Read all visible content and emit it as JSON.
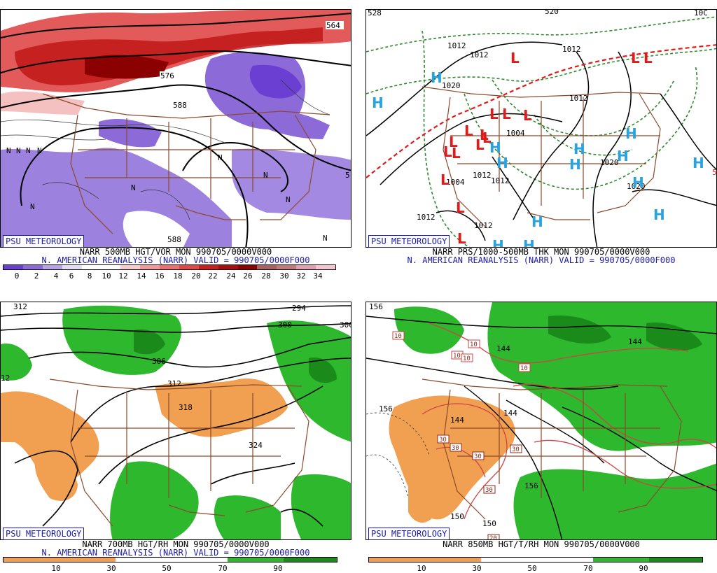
{
  "panels": {
    "p1": {
      "caption1": "NARR 500MB HGT/VOR MON 990705/0000V000",
      "caption2": "N. AMERICAN REANALYSIS (NARR) VALID = 990705/0000F000",
      "badge": "PSU METEOROLOGY",
      "colorbar_ticks": [
        "0",
        "2",
        "4",
        "6",
        "8",
        "10",
        "12",
        "14",
        "16",
        "18",
        "20",
        "22",
        "24",
        "26",
        "28",
        "30",
        "32",
        "34"
      ],
      "colors": {
        "neg_fill": "#8c6bd9",
        "pos_fill": "#e04848"
      },
      "contour_labels": [
        "564",
        "576",
        "588",
        "588",
        "5"
      ],
      "n_marks": [
        "N",
        "N",
        "N",
        "N",
        "N",
        "N",
        "N",
        "N",
        "N",
        "N"
      ]
    },
    "p2": {
      "caption1": "NARR PRS/1000-500MB THK MON 990705/0000V000",
      "caption2": "N. AMERICAN REANALYSIS (NARR) VALID = 990705/0000F000",
      "badge": "PSU METEOROLOGY",
      "edge_labels": [
        "528",
        "520",
        "10C",
        "5"
      ],
      "pressure_labels": [
        "1012",
        "1012",
        "1012",
        "1020",
        "1012",
        "1004",
        "1012",
        "1012",
        "1004",
        "1020",
        "1020",
        "1012",
        "1012"
      ],
      "highs": [
        "H",
        "H",
        "H",
        "H",
        "H",
        "H",
        "H",
        "H",
        "H",
        "H",
        "H",
        "H",
        "H",
        "H"
      ],
      "lows": [
        "L",
        "L",
        "L",
        "L",
        "L",
        "L",
        "L",
        "L",
        "L",
        "L",
        "L",
        "L",
        "L",
        "L",
        "L",
        "L"
      ]
    },
    "p3": {
      "caption1": "NARR 700MB HGT/RH MON 990705/0000V000",
      "caption2": "N. AMERICAN REANALYSIS (NARR) VALID = 990705/0000F000",
      "badge": "PSU METEOROLOGY",
      "colorbar_ticks": [
        "10",
        "30",
        "50",
        "70",
        "90"
      ],
      "contour_labels": [
        "312",
        "294",
        "300",
        "306",
        "306",
        "312",
        "318",
        "324",
        "12"
      ],
      "colors": {
        "dry": "#f0a050",
        "moist": "#2db82d"
      }
    },
    "p4": {
      "caption1": "NARR 850MB HGT/T/RH MON 990705/0000V000",
      "badge": "PSU METEOROLOGY",
      "colorbar_ticks": [
        "10",
        "30",
        "50",
        "70",
        "90"
      ],
      "contour_labels": [
        "156",
        "156",
        "144",
        "144",
        "144",
        "144",
        "150",
        "150",
        "156"
      ],
      "temp_labels": [
        "10",
        "10",
        "10",
        "10",
        "10",
        "30",
        "30",
        "30",
        "30",
        "30",
        "20"
      ]
    }
  }
}
